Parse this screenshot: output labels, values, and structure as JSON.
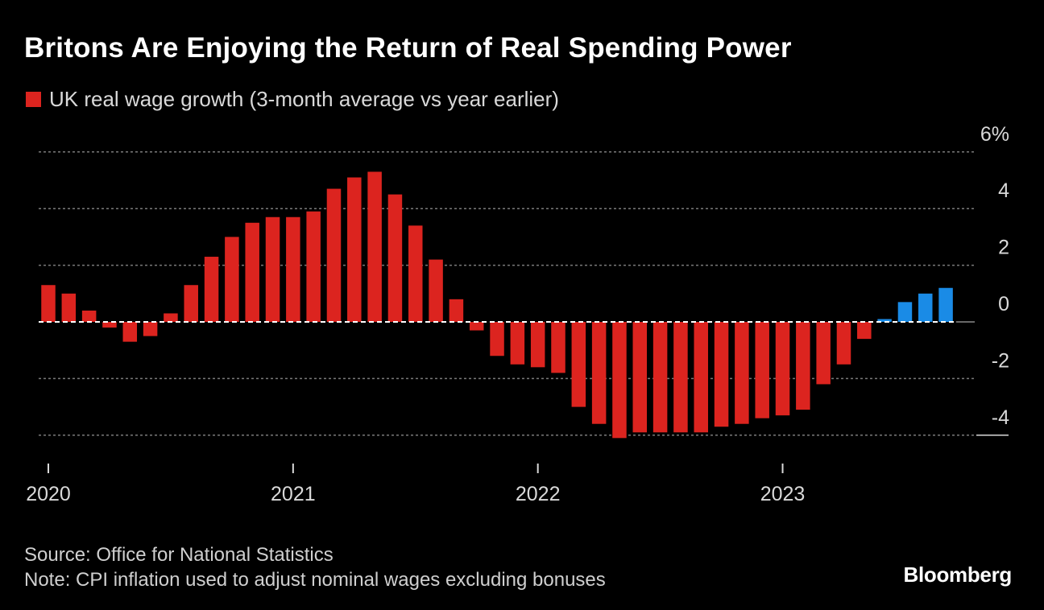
{
  "title": "Britons Are Enjoying the Return of Real Spending Power",
  "legend": {
    "label": "UK real wage growth (3-month average vs year earlier)",
    "color": "#dc241f"
  },
  "footer": {
    "source": "Source: Office for National Statistics",
    "note": "Note: CPI inflation used to adjust nominal wages excluding bonuses"
  },
  "brand": "Bloomberg",
  "chart_data": {
    "type": "bar",
    "title": "Britons Are Enjoying the Return of Real Spending Power",
    "xlabel": "",
    "ylabel": "",
    "ylim": [
      -4,
      6
    ],
    "y_ticks": [
      -4,
      -2,
      0,
      2,
      4,
      6
    ],
    "y_tick_labels": [
      "-4",
      "-2",
      "0",
      "2",
      "4",
      "6%"
    ],
    "x_tick_labels": [
      "2020",
      "2021",
      "2022",
      "2023"
    ],
    "x_tick_positions": [
      0,
      12,
      24,
      36
    ],
    "grid": true,
    "colors": {
      "negative_or_past": "#dc241f",
      "recent": "#1a8be6"
    },
    "series": [
      {
        "name": "UK real wage growth (3-month average vs year earlier)",
        "values": [
          1.3,
          1.0,
          0.4,
          -0.2,
          -0.7,
          -0.5,
          0.3,
          1.3,
          2.3,
          3.0,
          3.5,
          3.7,
          3.7,
          3.9,
          4.7,
          5.1,
          5.3,
          4.5,
          3.4,
          2.2,
          0.8,
          -0.3,
          -1.2,
          -1.5,
          -1.6,
          -1.8,
          -3.0,
          -3.6,
          -4.1,
          -3.9,
          -3.9,
          -3.9,
          -3.9,
          -3.7,
          -3.6,
          -3.4,
          -3.3,
          -3.1,
          -2.2,
          -1.5,
          -0.6,
          0.1,
          0.7,
          1.0,
          1.2
        ],
        "highlight_from_index": 41
      }
    ]
  }
}
